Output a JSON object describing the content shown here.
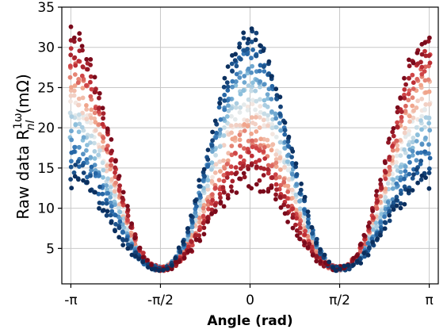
{
  "chart_data": {
    "type": "scatter",
    "title": "",
    "xlabel": "Angle (rad)",
    "ylabel": {
      "main": "Raw data R",
      "superscript": "1ω",
      "subscript": "nl",
      "unit": "(mΩ)"
    },
    "xlim": [
      -3.3,
      3.3
    ],
    "ylim": [
      0.6,
      35
    ],
    "xticks": [
      {
        "value": -3.14159,
        "label": "-π"
      },
      {
        "value": -1.5708,
        "label": "-π/2"
      },
      {
        "value": 0,
        "label": "0"
      },
      {
        "value": 1.5708,
        "label": "π/2"
      },
      {
        "value": 3.14159,
        "label": "π"
      }
    ],
    "yticks": [
      {
        "value": 5,
        "label": "5"
      },
      {
        "value": 10,
        "label": "10"
      },
      {
        "value": 15,
        "label": "15"
      },
      {
        "value": 20,
        "label": "20"
      },
      {
        "value": 25,
        "label": "25"
      },
      {
        "value": 30,
        "label": "30"
      },
      {
        "value": 35,
        "label": "35"
      }
    ],
    "grid": true,
    "colormap": [
      "#0b2f5e",
      "#2b6fb1",
      "#8cbfdc",
      "#f4f1ee",
      "#f0a58c",
      "#c9353b",
      "#7a0a1b"
    ],
    "series_model": {
      "description_free": true,
      "count": 22,
      "minimum_value": 2.5,
      "blue_end": {
        "peak_at_0": 32.0,
        "value_at_pi": 13.5
      },
      "red_end": {
        "peak_at_0": 13.5,
        "value_at_pi": 31.5
      },
      "points_per_series": 90,
      "x_range": [
        -3.14159,
        3.14159
      ]
    }
  }
}
